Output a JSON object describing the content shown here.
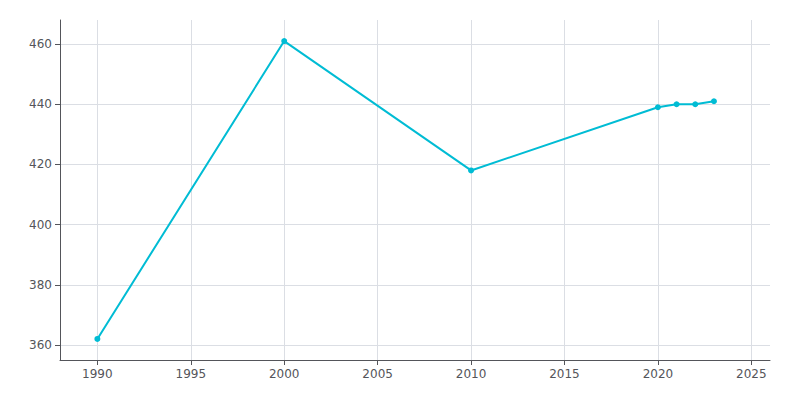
{
  "chart_data": {
    "type": "line",
    "x": [
      1990,
      2000,
      2010,
      2020,
      2021,
      2022,
      2023
    ],
    "values": [
      362,
      461,
      418,
      439,
      440,
      440,
      441
    ],
    "color": "#00bcd4",
    "marker": "circle",
    "xlim": [
      1988,
      2026
    ],
    "ylim": [
      355,
      468
    ],
    "xticks": [
      1990,
      1995,
      2000,
      2005,
      2010,
      2015,
      2020,
      2025
    ],
    "yticks": [
      360,
      380,
      400,
      420,
      440,
      460
    ],
    "grid": true
  }
}
